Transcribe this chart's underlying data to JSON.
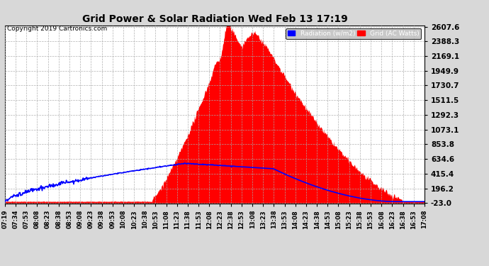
{
  "title": "Grid Power & Solar Radiation Wed Feb 13 17:19",
  "copyright": "Copyright 2019 Cartronics.com",
  "bg_color": "#d8d8d8",
  "plot_bg_color": "#ffffff",
  "grid_color": "#aaaaaa",
  "yticks": [
    -23.0,
    196.2,
    415.4,
    634.6,
    853.8,
    1073.1,
    1292.3,
    1511.5,
    1730.7,
    1949.9,
    2169.1,
    2388.3,
    2607.6
  ],
  "ymin": -23.0,
  "ymax": 2607.6,
  "radiation_color": "#0000ff",
  "grid_power_color": "#ff0000",
  "x_labels": [
    "07:19",
    "07:34",
    "07:53",
    "08:08",
    "08:23",
    "08:38",
    "08:53",
    "09:08",
    "09:23",
    "09:38",
    "09:53",
    "10:08",
    "10:23",
    "10:38",
    "10:53",
    "11:08",
    "11:23",
    "11:38",
    "11:53",
    "12:08",
    "12:23",
    "12:38",
    "12:53",
    "13:08",
    "13:23",
    "13:38",
    "13:53",
    "14:08",
    "14:23",
    "14:38",
    "14:53",
    "15:08",
    "15:23",
    "15:38",
    "15:53",
    "16:08",
    "16:23",
    "16:38",
    "16:53",
    "17:08"
  ]
}
